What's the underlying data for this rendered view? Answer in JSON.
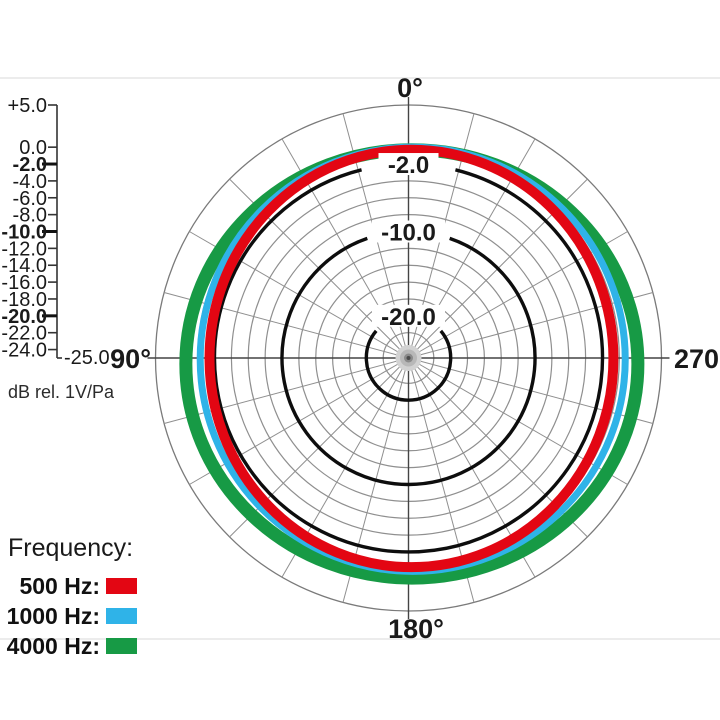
{
  "colors": {
    "red": "#e30613",
    "blue": "#2fb3e8",
    "green": "#179a45",
    "grid": "#8f8f8f",
    "axis": "#444444",
    "ring_major": "#0d0d0d",
    "text": "#1a1a1a",
    "divider": "#ececec"
  },
  "scale": {
    "unit_label": "dB rel. 1V/Pa",
    "ticks": [
      {
        "label": "+5.0",
        "db": 5,
        "bold": false
      },
      {
        "label": "0.0",
        "db": 0,
        "bold": false
      },
      {
        "label": "-2.0",
        "db": -2,
        "bold": true
      },
      {
        "label": "-4.0",
        "db": -4,
        "bold": false
      },
      {
        "label": "-6.0",
        "db": -6,
        "bold": false
      },
      {
        "label": "-8.0",
        "db": -8,
        "bold": false
      },
      {
        "label": "-10.0",
        "db": -10,
        "bold": true
      },
      {
        "label": "-12.0",
        "db": -12,
        "bold": false
      },
      {
        "label": "-14.0",
        "db": -14,
        "bold": false
      },
      {
        "label": "-16.0",
        "db": -16,
        "bold": false
      },
      {
        "label": "-18.0",
        "db": -18,
        "bold": false
      },
      {
        "label": "-20.0",
        "db": -20,
        "bold": true
      },
      {
        "label": "-22.0",
        "db": -22,
        "bold": false
      },
      {
        "label": "-24.0",
        "db": -24,
        "bold": false
      }
    ],
    "bottom_label": "-25.0",
    "min_db": -25,
    "max_db": 5
  },
  "polar": {
    "angle_labels": [
      {
        "text": "0°",
        "deg": 0
      },
      {
        "text": "90°",
        "deg": 90
      },
      {
        "text": "180°",
        "deg": 180
      },
      {
        "text": "270°",
        "deg": 270
      }
    ],
    "ring_labels": [
      {
        "text": "-2.0",
        "db": -2,
        "gap_half_deg": 14
      },
      {
        "text": "-10.0",
        "db": -10,
        "gap_half_deg": 19
      },
      {
        "text": "-20.0",
        "db": -20,
        "gap_half_deg": 50
      }
    ],
    "minor_rings_db": [
      0,
      -4,
      -6,
      -8,
      -12,
      -14,
      -16,
      -18,
      -22,
      -24
    ],
    "outer_db": 5,
    "spoke_step_deg": 15
  },
  "legend": {
    "title": "Frequency:",
    "items": [
      {
        "label": "500 Hz:",
        "color": "#e30613"
      },
      {
        "label": "1000 Hz:",
        "color": "#2fb3e8"
      },
      {
        "label": "4000 Hz:",
        "color": "#179a45"
      }
    ]
  },
  "chart_data": {
    "type": "polar_line",
    "radial_axis": {
      "unit": "dB rel. 1V/Pa",
      "min": -25,
      "max": 5,
      "labeled_rings_db": [
        -2,
        -10,
        -20
      ],
      "minor_grid_step_db": 2
    },
    "angular_axis": {
      "labels_deg": [
        0,
        90,
        180,
        270
      ],
      "orientation": "0 top, 90 left, 180 bottom, 270 right",
      "spoke_step_deg": 15
    },
    "series": [
      {
        "name": "500 Hz",
        "color": "#e30613",
        "pattern": "omnidirectional",
        "db_at_deg": {
          "0": -0.3,
          "90": -1.4,
          "180": -0.2,
          "270": -0.7
        }
      },
      {
        "name": "1000 Hz",
        "color": "#2fb3e8",
        "pattern": "omnidirectional",
        "db_at_deg": {
          "0": 0.0,
          "90": -0.3,
          "180": 0.3,
          "270": 0.7
        }
      },
      {
        "name": "4000 Hz",
        "color": "#179a45",
        "pattern": "omnidirectional",
        "db_at_deg": {
          "0": -0.3,
          "90": 1.4,
          "180": 1.1,
          "270": 2.2
        }
      }
    ],
    "legend_position": "bottom-left"
  }
}
